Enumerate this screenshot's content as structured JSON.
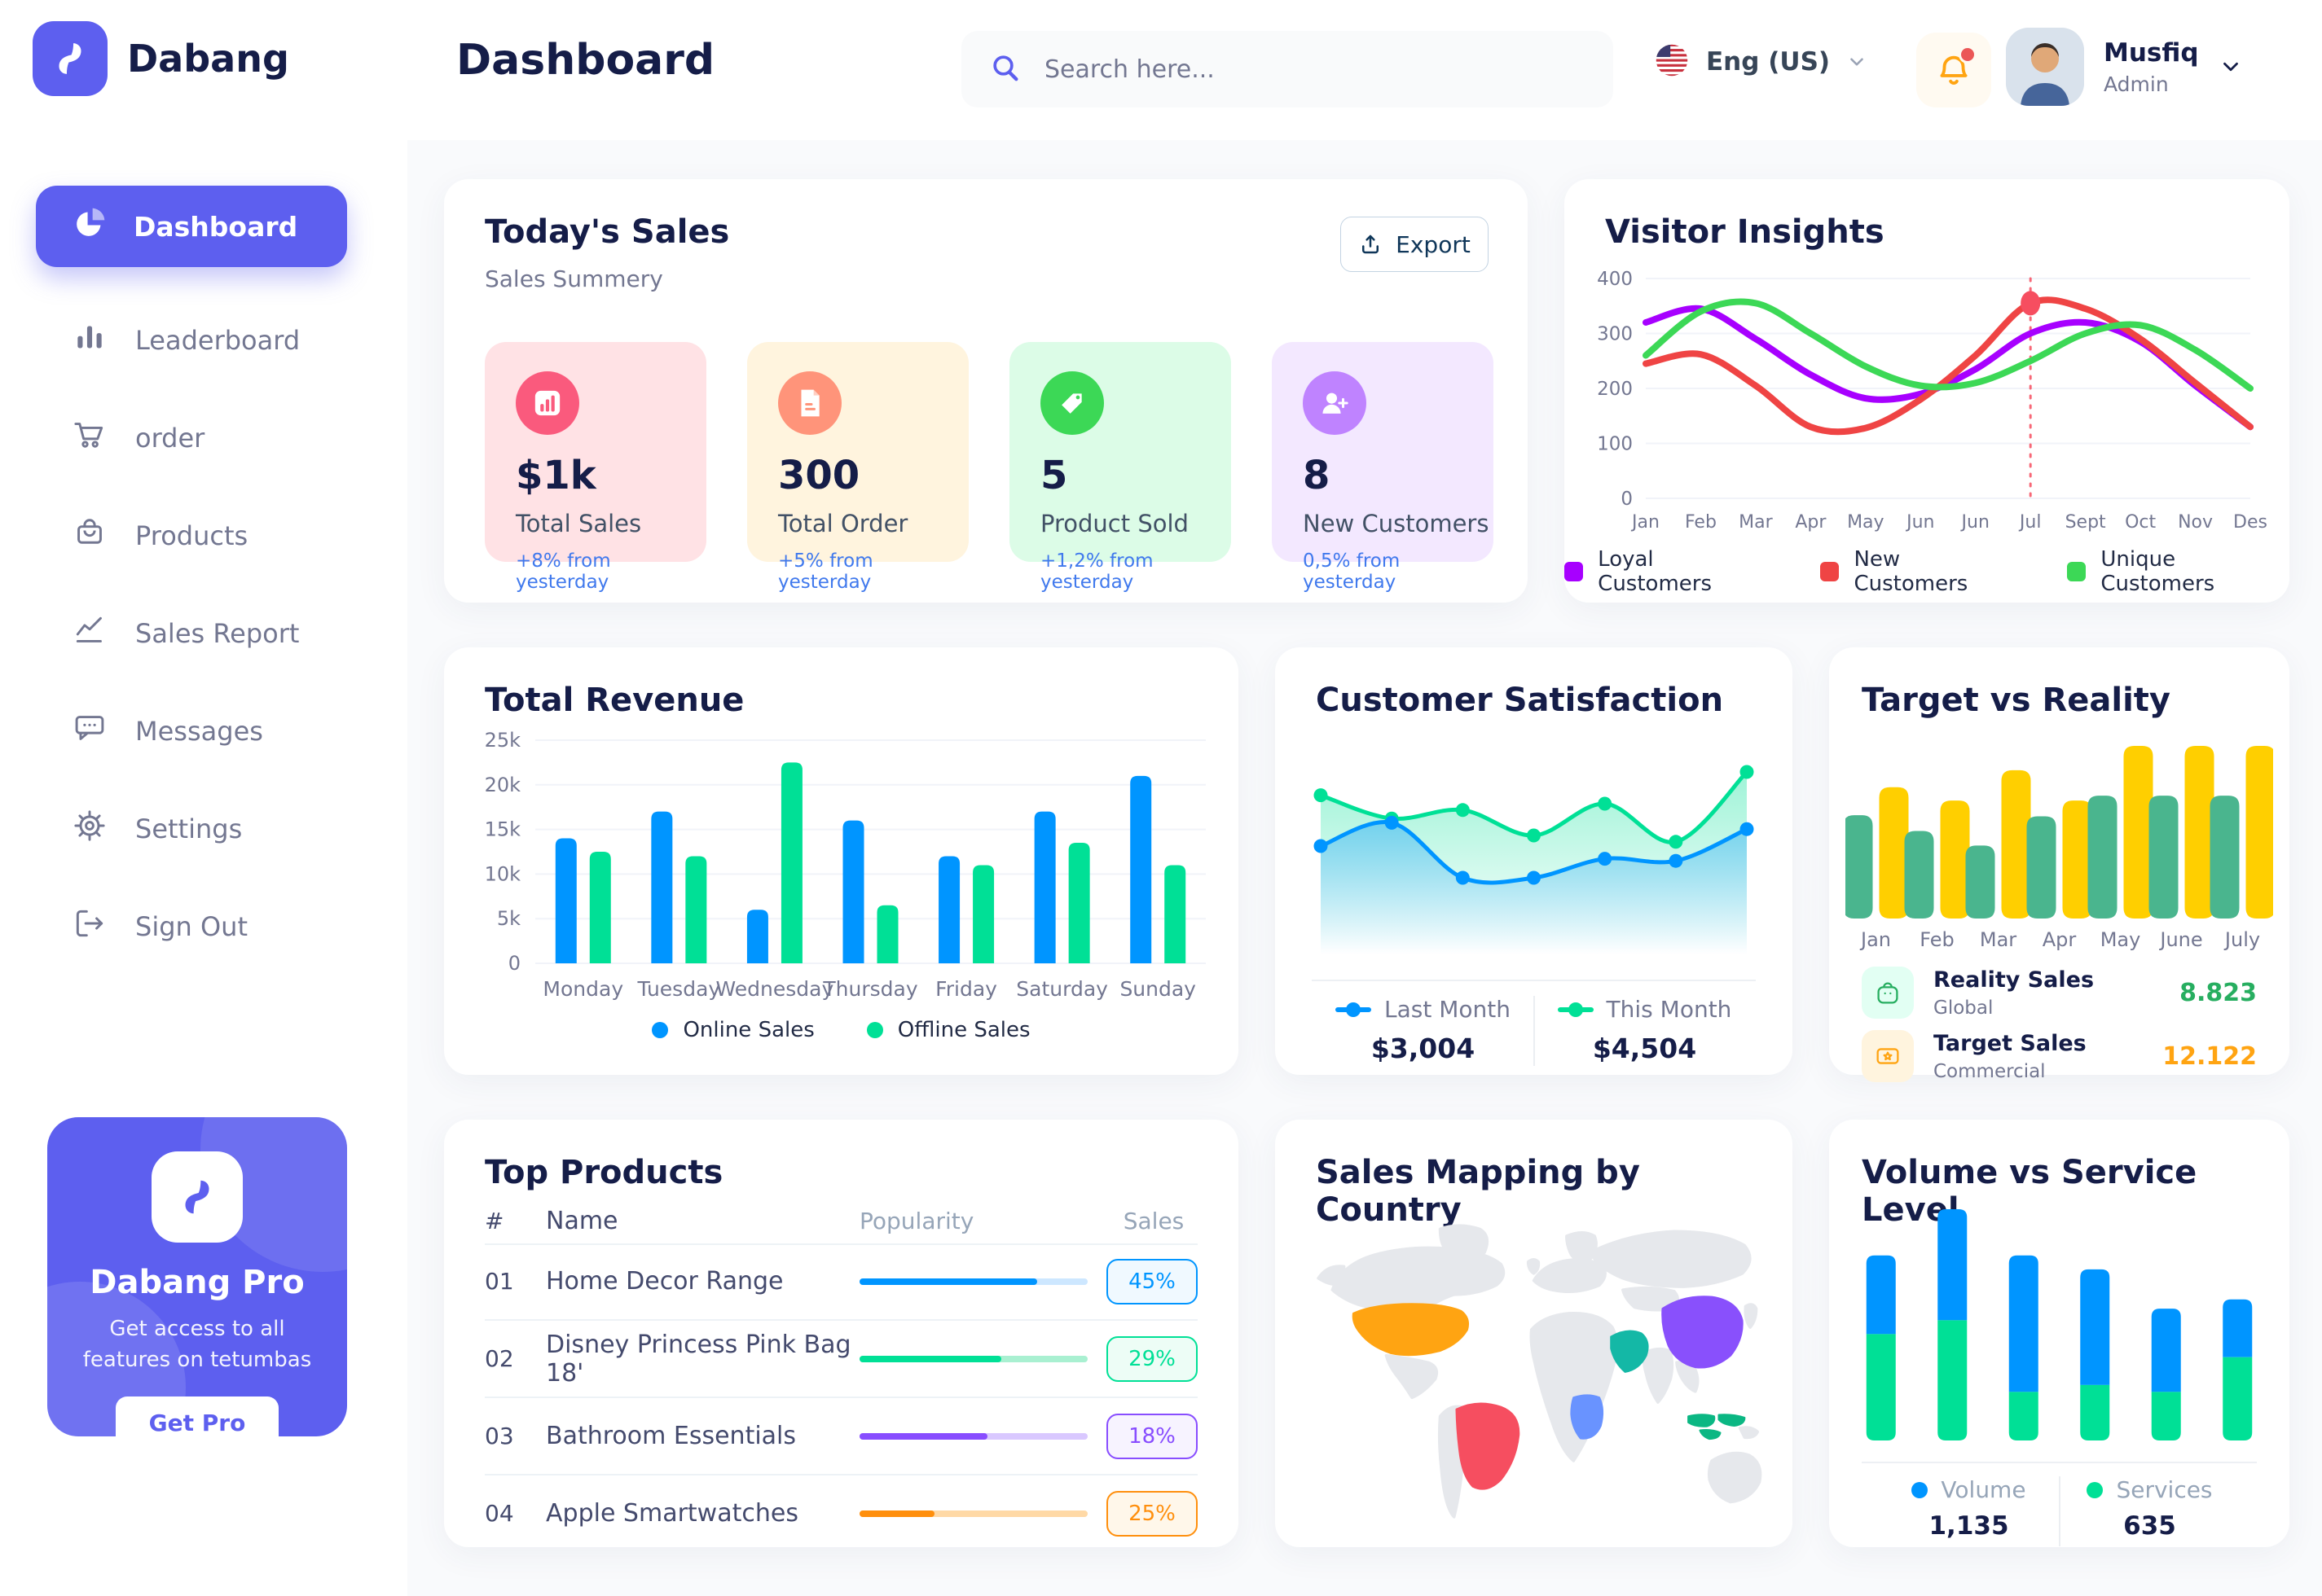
{
  "app": {
    "brand": "Dabang"
  },
  "header": {
    "title": "Dashboard",
    "search_placeholder": "Search here...",
    "language": "Eng (US)",
    "user_name": "Musfiq",
    "user_role": "Admin"
  },
  "sidebar": {
    "items": [
      {
        "label": "Dashboard"
      },
      {
        "label": "Leaderboard"
      },
      {
        "label": "order"
      },
      {
        "label": "Products"
      },
      {
        "label": "Sales Report"
      },
      {
        "label": "Messages"
      },
      {
        "label": "Settings"
      },
      {
        "label": "Sign Out"
      }
    ],
    "pro": {
      "title": "Dabang Pro",
      "desc": "Get access to all features on tetumbas",
      "button": "Get Pro"
    }
  },
  "today_sales": {
    "title": "Today's Sales",
    "subtitle": "Sales Summery",
    "export_label": "Export",
    "cards": [
      {
        "value": "$1k",
        "label": "Total Sales",
        "delta": "+8% from yesterday",
        "bg": "#FFE2E5",
        "icon_bg": "#FA5A7D",
        "icon": "bar-chart"
      },
      {
        "value": "300",
        "label": "Total Order",
        "delta": "+5% from yesterday",
        "bg": "#FFF4DE",
        "icon_bg": "#FF947A",
        "icon": "file"
      },
      {
        "value": "5",
        "label": "Product Sold",
        "delta": "+1,2% from yesterday",
        "bg": "#DCFCE7",
        "icon_bg": "#3CD856",
        "icon": "tag"
      },
      {
        "value": "8",
        "label": "New Customers",
        "delta": "0,5% from yesterday",
        "bg": "#F3E8FF",
        "icon_bg": "#BF83FF",
        "icon": "user-plus"
      }
    ]
  },
  "chart_data": [
    {
      "id": "visitor-insights",
      "type": "line",
      "title": "Visitor Insights",
      "x_labels": [
        "Jan",
        "Feb",
        "Mar",
        "Apr",
        "May",
        "Jun",
        "Jun",
        "Jul",
        "Sept",
        "Oct",
        "Nov",
        "Des"
      ],
      "yticks": [
        0,
        100,
        200,
        300,
        400
      ],
      "ylim": [
        0,
        400
      ],
      "grid": true,
      "legend_position": "bottom",
      "marker": {
        "x_index": 7,
        "series": "New Customers",
        "color": "#F64E60"
      },
      "series": [
        {
          "name": "Loyal Customers",
          "color": "#A700FF",
          "values": [
            320,
            345,
            290,
            225,
            182,
            190,
            235,
            300,
            320,
            285,
            205,
            130
          ]
        },
        {
          "name": "New Customers",
          "color": "#EF4444",
          "values": [
            245,
            262,
            205,
            130,
            128,
            180,
            260,
            355,
            345,
            290,
            210,
            130
          ]
        },
        {
          "name": "Unique Customers",
          "color": "#3CD856",
          "values": [
            260,
            340,
            355,
            300,
            240,
            205,
            210,
            250,
            300,
            315,
            270,
            200
          ]
        }
      ]
    },
    {
      "id": "total-revenue",
      "type": "bar",
      "title": "Total Revenue",
      "categories": [
        "Monday",
        "Tuesday",
        "Wednesday",
        "Thursday",
        "Friday",
        "Saturday",
        "Sunday"
      ],
      "yticks": [
        0,
        5,
        10,
        15,
        20,
        25
      ],
      "ytick_labels": [
        "0",
        "5k",
        "10k",
        "15k",
        "20k",
        "25k"
      ],
      "ylim": [
        0,
        25
      ],
      "grid": true,
      "legend_position": "bottom",
      "series": [
        {
          "name": "Online Sales",
          "color": "#0095FF",
          "values": [
            14,
            17,
            6,
            16,
            12,
            17,
            21
          ]
        },
        {
          "name": "Offline Sales",
          "color": "#00E096",
          "values": [
            12.5,
            12,
            22.5,
            6.5,
            11,
            13.5,
            11
          ]
        }
      ]
    },
    {
      "id": "customer-satisfaction",
      "type": "area",
      "title": "Customer Satisfaction",
      "ylim": [
        0,
        100
      ],
      "grid": false,
      "legend_position": "bottom",
      "series": [
        {
          "name": "Last Month",
          "color": "#0095FF",
          "total": "$3,004",
          "values": [
            55,
            66,
            40,
            40,
            49,
            48,
            63
          ]
        },
        {
          "name": "This Month",
          "color": "#00E096",
          "total": "$4,504",
          "values": [
            79,
            68,
            72,
            60,
            75,
            57,
            90
          ]
        }
      ]
    },
    {
      "id": "target-vs-reality",
      "type": "bar",
      "title": "Target vs Reality",
      "categories": [
        "Jan",
        "Feb",
        "Mar",
        "Apr",
        "May",
        "June",
        "July"
      ],
      "ylim": [
        0,
        15
      ],
      "grid": false,
      "legend_position": "bottom-list",
      "series": [
        {
          "name": "Reality Sales",
          "subtitle": "Global",
          "color": "#4AB58E",
          "value_label": "8.823",
          "value_color": "#27AE60",
          "icon_bg": "#E2FFF3",
          "values": [
            8.5,
            7.2,
            6.0,
            8.4,
            10.1,
            10.1,
            10.1
          ]
        },
        {
          "name": "Target Sales",
          "subtitle": "Commercial",
          "color": "#FFCF00",
          "value_label": "12.122",
          "value_color": "#FFA412",
          "icon_bg": "#FFF4DE",
          "values": [
            10.8,
            9.7,
            12.2,
            9.7,
            14.2,
            14.2,
            14.2
          ]
        }
      ]
    },
    {
      "id": "volume-vs-service",
      "type": "stacked-bar",
      "title": "Volume vs Service Level",
      "ylim": [
        0,
        1000
      ],
      "grid": false,
      "legend_position": "bottom",
      "series": [
        {
          "name": "Volume",
          "color": "#0095FF",
          "total": "1,135",
          "values": [
            340,
            480,
            590,
            500,
            360,
            250
          ]
        },
        {
          "name": "Services",
          "color": "#00E096",
          "total": "635",
          "values": [
            460,
            520,
            210,
            240,
            210,
            360
          ]
        }
      ]
    }
  ],
  "top_products": {
    "title": "Top Products",
    "headers": [
      "#",
      "Name",
      "Popularity",
      "Sales"
    ],
    "rows": [
      {
        "num": "01",
        "name": "Home Decor Range",
        "popularity": 78,
        "sales": "45%",
        "color": "#0095FF",
        "track": "#CDE7FF",
        "badge_bg": "#F0F9FF"
      },
      {
        "num": "02",
        "name": "Disney Princess Pink Bag 18'",
        "popularity": 62,
        "sales": "29%",
        "color": "#00E096",
        "track": "#A9F0D1",
        "badge_bg": "#EDFDF6"
      },
      {
        "num": "03",
        "name": "Bathroom Essentials",
        "popularity": 56,
        "sales": "18%",
        "color": "#884DFF",
        "track": "#D9C8FF",
        "badge_bg": "#F7F3FF"
      },
      {
        "num": "04",
        "name": "Apple Smartwatches",
        "popularity": 33,
        "sales": "25%",
        "color": "#FF8F0D",
        "track": "#FFD9A6",
        "badge_bg": "#FFF7EA"
      }
    ]
  },
  "sales_map": {
    "title": "Sales Mapping by Country",
    "land_color": "#E6E8EC",
    "countries": [
      {
        "code": "us",
        "name": "United States",
        "color": "#FFA412"
      },
      {
        "code": "br",
        "name": "Brazil",
        "color": "#F64E60"
      },
      {
        "code": "cn",
        "name": "China",
        "color": "#8950FC"
      },
      {
        "code": "sa",
        "name": "Saudi Arabia",
        "color": "#14B8A6"
      },
      {
        "code": "cd",
        "name": "DR Congo",
        "color": "#6993FF"
      },
      {
        "code": "id",
        "name": "Indonesia",
        "color": "#0BB783"
      }
    ]
  }
}
